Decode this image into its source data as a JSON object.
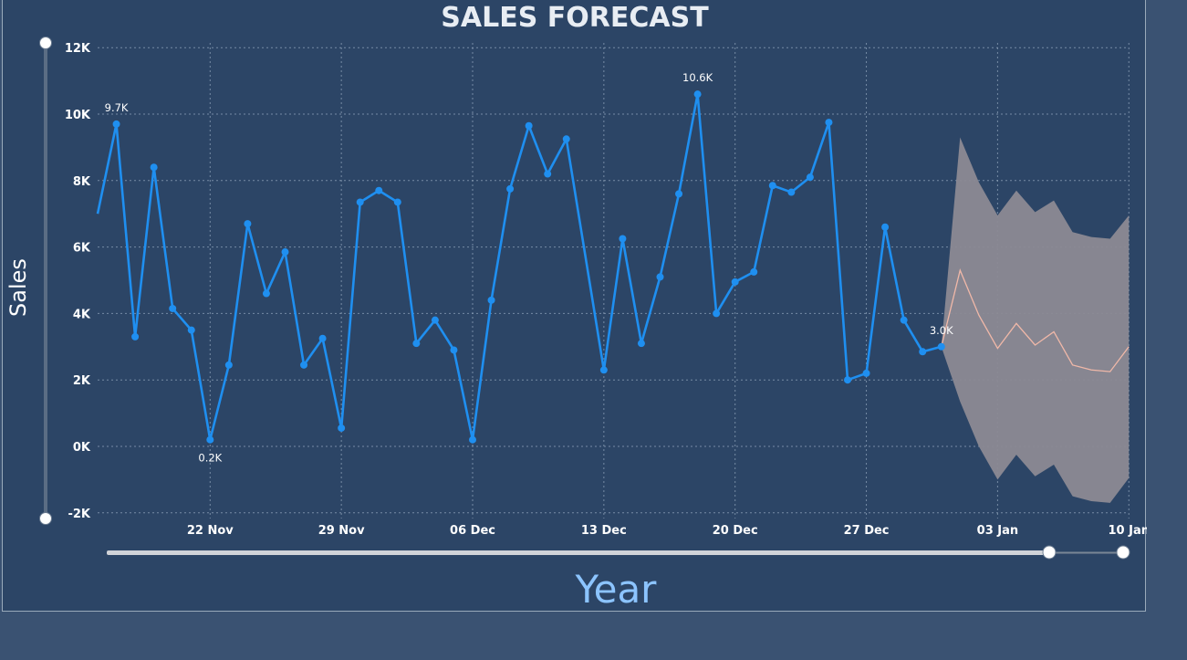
{
  "chart_data": {
    "type": "line",
    "title": "SALES FORECAST",
    "xlabel": "Year",
    "ylabel": "Sales",
    "x_ticks": [
      "22 Nov",
      "29 Nov",
      "06 Dec",
      "13 Dec",
      "20 Dec",
      "27 Dec",
      "03 Jan",
      "10 Jan"
    ],
    "y_ticks": [
      "12K",
      "10K",
      "8K",
      "6K",
      "4K",
      "2K",
      "0K",
      "-2K"
    ],
    "ylim": [
      -2000,
      12000
    ],
    "grid": true,
    "colors": {
      "actual": "#1f8ff0",
      "forecast_line": "#f0b8a8",
      "band": "#8c8a94"
    },
    "series": [
      {
        "values": [
          {
            "x": "2020-11-16",
            "y": 7000
          },
          {
            "x": "2020-11-17",
            "y": 9700,
            "label": "9.7K"
          },
          {
            "x": "2020-11-18",
            "y": 3300
          },
          {
            "x": "2020-11-19",
            "y": 8400
          },
          {
            "x": "2020-11-20",
            "y": 4150
          },
          {
            "x": "2020-11-21",
            "y": 3500
          },
          {
            "x": "2020-11-22",
            "y": 200,
            "label": "0.2K"
          },
          {
            "x": "2020-11-23",
            "y": 2450
          },
          {
            "x": "2020-11-24",
            "y": 6700
          },
          {
            "x": "2020-11-25",
            "y": 4600
          },
          {
            "x": "2020-11-26",
            "y": 5850
          },
          {
            "x": "2020-11-27",
            "y": 2450
          },
          {
            "x": "2020-11-28",
            "y": 3250
          },
          {
            "x": "2020-11-29",
            "y": 550
          },
          {
            "x": "2020-11-30",
            "y": 7350
          },
          {
            "x": "2020-12-01",
            "y": 7700
          },
          {
            "x": "2020-12-02",
            "y": 7350
          },
          {
            "x": "2020-12-03",
            "y": 3100
          },
          {
            "x": "2020-12-04",
            "y": 3800
          },
          {
            "x": "2020-12-05",
            "y": 2900
          },
          {
            "x": "2020-12-06",
            "y": 200
          },
          {
            "x": "2020-12-07",
            "y": 4400
          },
          {
            "x": "2020-12-08",
            "y": 7750
          },
          {
            "x": "2020-12-09",
            "y": 9650
          },
          {
            "x": "2020-12-10",
            "y": 8200
          },
          {
            "x": "2020-12-11",
            "y": 9250
          },
          {
            "x": "2020-12-13",
            "y": 2300
          },
          {
            "x": "2020-12-14",
            "y": 6250
          },
          {
            "x": "2020-12-15",
            "y": 3100
          },
          {
            "x": "2020-12-16",
            "y": 5100
          },
          {
            "x": "2020-12-17",
            "y": 7600
          },
          {
            "x": "2020-12-18",
            "y": 10600,
            "label": "10.6K"
          },
          {
            "x": "2020-12-19",
            "y": 4000
          },
          {
            "x": "2020-12-20",
            "y": 4950
          },
          {
            "x": "2020-12-21",
            "y": 5250
          },
          {
            "x": "2020-12-22",
            "y": 7850
          },
          {
            "x": "2020-12-23",
            "y": 7650
          },
          {
            "x": "2020-12-24",
            "y": 8100
          },
          {
            "x": "2020-12-25",
            "y": 9750
          },
          {
            "x": "2020-12-26",
            "y": 2000
          },
          {
            "x": "2020-12-27",
            "y": 2200
          },
          {
            "x": "2020-12-28",
            "y": 6600
          },
          {
            "x": "2020-12-29",
            "y": 3800
          },
          {
            "x": "2020-12-30",
            "y": 2850
          },
          {
            "x": "2020-12-31",
            "y": 3000,
            "label": "3.0K"
          }
        ]
      },
      {
        "values": [
          {
            "x": "2020-12-31",
            "y": 3000,
            "upper": 3000,
            "lower": 3000
          },
          {
            "x": "2021-01-01",
            "y": 5300,
            "upper": 9300,
            "lower": 1350
          },
          {
            "x": "2021-01-02",
            "y": 3950,
            "upper": 7950,
            "lower": 0
          },
          {
            "x": "2021-01-03",
            "y": 2950,
            "upper": 6950,
            "lower": -1000
          },
          {
            "x": "2021-01-04",
            "y": 3700,
            "upper": 7700,
            "lower": -250
          },
          {
            "x": "2021-01-05",
            "y": 3050,
            "upper": 7050,
            "lower": -900
          },
          {
            "x": "2021-01-06",
            "y": 3450,
            "upper": 7400,
            "lower": -550
          },
          {
            "x": "2021-01-07",
            "y": 2450,
            "upper": 6450,
            "lower": -1500
          },
          {
            "x": "2021-01-08",
            "y": 2300,
            "upper": 6300,
            "lower": -1650
          },
          {
            "x": "2021-01-09",
            "y": 2250,
            "upper": 6250,
            "lower": -1700
          },
          {
            "x": "2021-01-10",
            "y": 3000,
            "upper": 6950,
            "lower": -950
          }
        ]
      }
    ]
  }
}
